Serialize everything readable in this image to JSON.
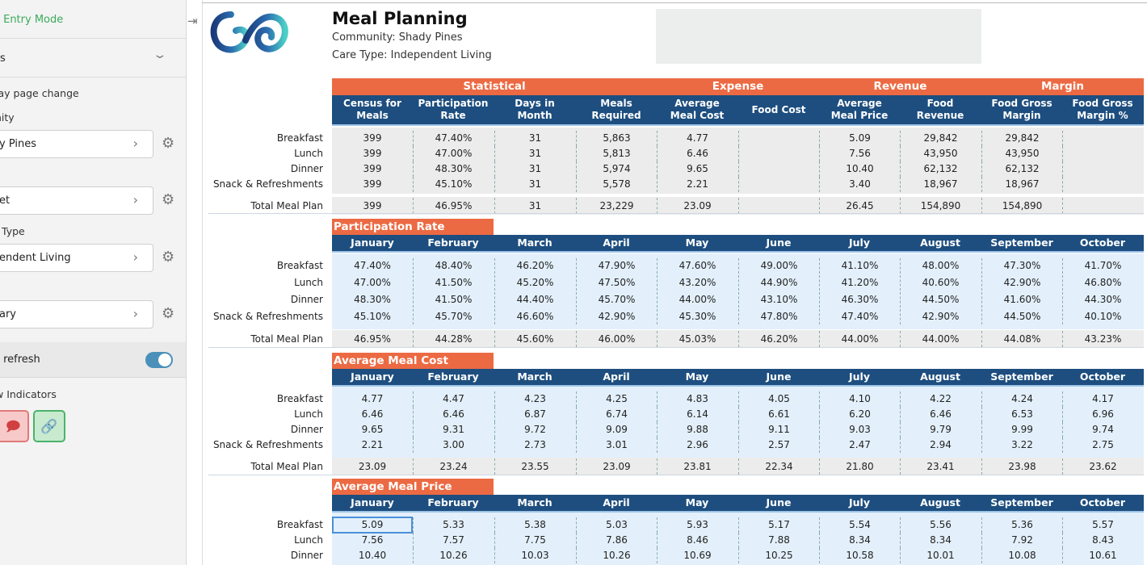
{
  "sidebar": {
    "entry_mode": "a Entry Mode",
    "section": "es",
    "display_page_change": "lay page change",
    "community_label": "nity",
    "community_value": "y Pines",
    "field2_value": "et",
    "care_type_label": "Type",
    "care_type_value": "endent Living",
    "field4_value": "ary",
    "auto_refresh_label": "o refresh",
    "auto_refresh_on": true,
    "indicators_label": "w Indicators"
  },
  "report": {
    "title": "Meal Planning",
    "community": "Community: Shady Pines",
    "care_type": "Care Type: Independent Living",
    "colors": {
      "orange": "#ec6a43",
      "navy": "#1d4e7f",
      "light_blue": "#e3f0fb",
      "light_gray": "#ececec"
    }
  },
  "summary": {
    "groups": [
      {
        "label": "Statistical"
      },
      {
        "label": "Expense"
      },
      {
        "label": "Revenue"
      },
      {
        "label": "Margin"
      }
    ],
    "columns": [
      "Census for Meals",
      "Participation Rate",
      "Days in Month",
      "Meals Required",
      "Average Meal Cost",
      "Food Cost",
      "Average Meal Price",
      "Food Revenue",
      "Food Gross Margin",
      "Food Gross Margin %"
    ],
    "rows": [
      {
        "label": "Breakfast",
        "values": [
          "399",
          "47.40%",
          "31",
          "5,863",
          "4.77",
          "",
          "5.09",
          "29,842",
          "29,842",
          ""
        ]
      },
      {
        "label": "Lunch",
        "values": [
          "399",
          "47.00%",
          "31",
          "5,813",
          "6.46",
          "",
          "7.56",
          "43,950",
          "43,950",
          ""
        ]
      },
      {
        "label": "Dinner",
        "values": [
          "399",
          "48.30%",
          "31",
          "5,974",
          "9.65",
          "",
          "10.40",
          "62,132",
          "62,132",
          ""
        ]
      },
      {
        "label": "Snack & Refreshments",
        "values": [
          "399",
          "45.10%",
          "31",
          "5,578",
          "2.21",
          "",
          "3.40",
          "18,967",
          "18,967",
          ""
        ]
      }
    ],
    "total": {
      "label": "Total Meal Plan",
      "values": [
        "399",
        "46.95%",
        "31",
        "23,229",
        "23.09",
        "",
        "26.45",
        "154,890",
        "154,890",
        ""
      ]
    }
  },
  "months": [
    "January",
    "February",
    "March",
    "April",
    "May",
    "June",
    "July",
    "August",
    "September",
    "October"
  ],
  "sections": [
    {
      "title": "Participation Rate",
      "rows": [
        {
          "label": "Breakfast",
          "values": [
            "47.40%",
            "48.40%",
            "46.20%",
            "47.90%",
            "47.60%",
            "49.00%",
            "41.10%",
            "48.00%",
            "47.30%",
            "41.70%"
          ]
        },
        {
          "label": "Lunch",
          "values": [
            "47.00%",
            "41.50%",
            "45.20%",
            "47.50%",
            "43.20%",
            "44.90%",
            "41.20%",
            "40.60%",
            "42.90%",
            "46.80%"
          ]
        },
        {
          "label": "Dinner",
          "values": [
            "48.30%",
            "41.50%",
            "44.40%",
            "45.70%",
            "44.00%",
            "43.10%",
            "46.30%",
            "44.50%",
            "41.60%",
            "44.30%"
          ]
        },
        {
          "label": "Snack & Refreshments",
          "values": [
            "45.10%",
            "45.70%",
            "46.60%",
            "42.90%",
            "45.30%",
            "47.80%",
            "47.40%",
            "42.90%",
            "44.50%",
            "40.10%"
          ]
        }
      ],
      "total": {
        "label": "Total Meal Plan",
        "values": [
          "46.95%",
          "44.28%",
          "45.60%",
          "46.00%",
          "45.03%",
          "46.20%",
          "44.00%",
          "44.00%",
          "44.08%",
          "43.23%"
        ]
      }
    },
    {
      "title": "Average Meal Cost",
      "rows": [
        {
          "label": "Breakfast",
          "values": [
            "4.77",
            "4.47",
            "4.23",
            "4.25",
            "4.83",
            "4.05",
            "4.10",
            "4.22",
            "4.24",
            "4.17"
          ]
        },
        {
          "label": "Lunch",
          "values": [
            "6.46",
            "6.46",
            "6.87",
            "6.74",
            "6.14",
            "6.61",
            "6.20",
            "6.46",
            "6.53",
            "6.96"
          ]
        },
        {
          "label": "Dinner",
          "values": [
            "9.65",
            "9.31",
            "9.72",
            "9.09",
            "9.88",
            "9.11",
            "9.03",
            "9.79",
            "9.99",
            "9.74"
          ]
        },
        {
          "label": "Snack & Refreshments",
          "values": [
            "2.21",
            "3.00",
            "2.73",
            "3.01",
            "2.96",
            "2.57",
            "2.47",
            "2.94",
            "3.22",
            "2.75"
          ]
        }
      ],
      "total": {
        "label": "Total Meal Plan",
        "values": [
          "23.09",
          "23.24",
          "23.55",
          "23.09",
          "23.81",
          "22.34",
          "21.80",
          "23.41",
          "23.98",
          "23.62"
        ]
      }
    },
    {
      "title": "Average Meal Price",
      "rows": [
        {
          "label": "Breakfast",
          "values": [
            "5.09",
            "5.33",
            "5.38",
            "5.03",
            "5.93",
            "5.17",
            "5.54",
            "5.56",
            "5.36",
            "5.57"
          ]
        },
        {
          "label": "Lunch",
          "values": [
            "7.56",
            "7.57",
            "7.75",
            "7.86",
            "8.46",
            "7.88",
            "8.34",
            "8.34",
            "7.92",
            "8.43"
          ]
        },
        {
          "label": "Dinner",
          "values": [
            "10.40",
            "10.26",
            "10.03",
            "10.26",
            "10.69",
            "10.25",
            "10.58",
            "10.01",
            "10.08",
            "10.61"
          ]
        }
      ]
    }
  ]
}
